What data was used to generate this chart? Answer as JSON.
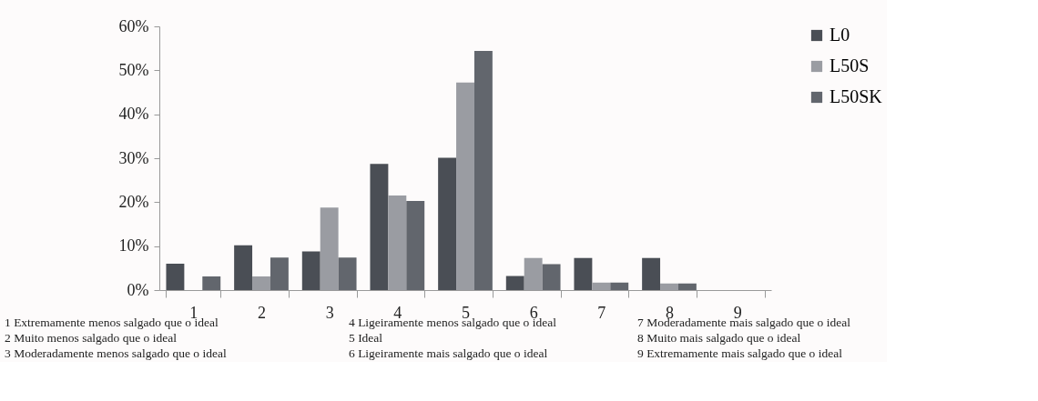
{
  "chart_data": {
    "type": "bar",
    "categories": [
      "1",
      "2",
      "3",
      "4",
      "5",
      "6",
      "7",
      "8",
      "9"
    ],
    "series": [
      {
        "name": "L0",
        "color": "#4a4e55",
        "values": [
          6.0,
          10.2,
          8.8,
          28.7,
          30.1,
          3.2,
          7.3,
          7.3,
          0
        ]
      },
      {
        "name": "L50S",
        "color": "#9a9ca2",
        "values": [
          0,
          3.1,
          18.8,
          21.5,
          47.2,
          7.3,
          1.7,
          1.5,
          0
        ]
      },
      {
        "name": "L50SK",
        "color": "#62666d",
        "values": [
          3.1,
          7.4,
          7.4,
          20.3,
          54.4,
          5.9,
          1.7,
          1.5,
          0
        ]
      }
    ],
    "ylim": [
      0,
      60
    ],
    "yticks": [
      {
        "value": 0,
        "label": "0%"
      },
      {
        "value": 10,
        "label": "10%"
      },
      {
        "value": 20,
        "label": "20%"
      },
      {
        "value": 30,
        "label": "30%"
      },
      {
        "value": 40,
        "label": "40%"
      },
      {
        "value": 50,
        "label": "50%"
      },
      {
        "value": 60,
        "label": "60%"
      }
    ],
    "grid": false,
    "legend": "right",
    "annotations": [
      "1 Extremamente menos salgado que o ideal",
      "2 Muito menos salgado que o ideal",
      "3 Moderadamente menos salgado que o ideal",
      "4 Ligeiramente menos salgado que o ideal",
      "5 Ideal",
      "6 Ligeiramente mais salgado que o ideal",
      "7 Moderadamente mais salgado que o ideal",
      "8 Muito mais salgado que o ideal",
      "9 Extremamente mais salgado que o ideal"
    ]
  }
}
